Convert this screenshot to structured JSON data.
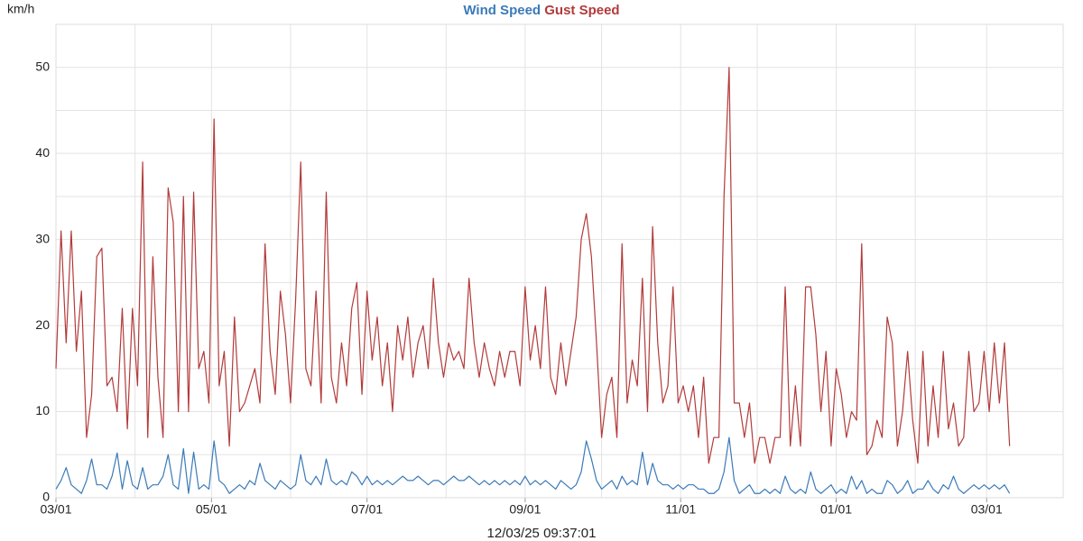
{
  "chart_data": {
    "type": "line",
    "y_label": "km/h",
    "x_label": "12/03/25 09:37:01",
    "x": [
      0,
      2,
      4,
      6,
      8,
      10,
      12,
      14,
      16,
      18,
      20,
      22,
      24,
      26,
      28,
      30,
      32,
      34,
      36,
      38,
      40,
      42,
      44,
      46,
      48,
      50,
      52,
      54,
      56,
      58,
      60,
      62,
      64,
      66,
      68,
      70,
      72,
      74,
      76,
      78,
      80,
      82,
      84,
      86,
      88,
      90,
      92,
      94,
      96,
      98,
      100,
      102,
      104,
      106,
      108,
      110,
      112,
      114,
      116,
      118,
      120,
      122,
      124,
      126,
      128,
      130,
      132,
      134,
      136,
      138,
      140,
      142,
      144,
      146,
      148,
      150,
      152,
      154,
      156,
      158,
      160,
      162,
      164,
      166,
      168,
      170,
      172,
      174,
      176,
      178,
      180,
      182,
      184,
      186,
      188,
      190,
      192,
      194,
      196,
      198,
      200,
      202,
      204,
      206,
      208,
      210,
      212,
      214,
      216,
      218,
      220,
      222,
      224,
      226,
      228,
      230,
      232,
      234,
      236,
      238,
      240,
      242,
      244,
      246,
      248,
      250,
      252,
      254,
      256,
      258,
      260,
      262,
      264,
      266,
      268,
      270,
      272,
      274,
      276,
      278,
      280,
      282,
      284,
      286,
      288,
      290,
      292,
      294,
      296,
      298,
      300,
      302,
      304,
      306,
      308,
      310,
      312,
      314,
      316,
      318,
      320,
      322,
      324,
      326,
      328,
      330,
      332,
      334,
      336,
      338,
      340,
      342,
      344,
      346,
      348,
      350,
      352,
      354,
      356,
      358,
      360,
      362,
      364,
      366,
      368,
      370,
      372,
      374
    ],
    "series": [
      {
        "name": "Wind Speed",
        "color": "#3a7ab8",
        "values": [
          1,
          2,
          3.5,
          1.5,
          1,
          0.5,
          2,
          4.5,
          1.5,
          1.5,
          1,
          2.5,
          5.2,
          1,
          4.3,
          1.5,
          1,
          3.5,
          1,
          1.5,
          1.5,
          2.5,
          5,
          1.5,
          1,
          5.7,
          0.5,
          5.3,
          1,
          1.5,
          1,
          6.6,
          2,
          1.5,
          0.5,
          1,
          1.5,
          1,
          2,
          1.5,
          4,
          2,
          1.5,
          1,
          2,
          1.5,
          1,
          1.5,
          5,
          2,
          1.5,
          2.5,
          1.5,
          4.5,
          2,
          1.5,
          2,
          1.5,
          3,
          2.5,
          1.5,
          2.5,
          1.5,
          2,
          1.5,
          2,
          1.5,
          2,
          2.5,
          2,
          2,
          2.5,
          2,
          1.5,
          2,
          2,
          1.5,
          2,
          2.5,
          2,
          2,
          2.5,
          2,
          1.5,
          2,
          1.5,
          2,
          1.5,
          2,
          1.5,
          2,
          1.5,
          2.5,
          1.5,
          2,
          1.5,
          2,
          1.5,
          1,
          2,
          1.5,
          1,
          1.5,
          3,
          6.6,
          4.5,
          2,
          1,
          1.5,
          2,
          1,
          2.5,
          1.5,
          2,
          1.5,
          5.3,
          1.5,
          4,
          2,
          1.5,
          1.5,
          1,
          1.5,
          1,
          1.5,
          1.5,
          1,
          1,
          0.5,
          0.5,
          1,
          3,
          7,
          2,
          0.5,
          1,
          1.5,
          0.5,
          0.5,
          1,
          0.5,
          1,
          0.5,
          2.5,
          1,
          0.5,
          1,
          0.5,
          3,
          1,
          0.5,
          1,
          1.5,
          0.5,
          1,
          0.5,
          2.5,
          1,
          2,
          0.5,
          1,
          0.5,
          0.5,
          2,
          1.5,
          0.5,
          1,
          2,
          0.5,
          1,
          1,
          2,
          1,
          0.5,
          1.5,
          1,
          2.5,
          1,
          0.5,
          1,
          1.5,
          1,
          1.5,
          1,
          1.5,
          1,
          1.5,
          0.5
        ]
      },
      {
        "name": "Gust Speed",
        "color": "#b33a3a",
        "values": [
          15,
          31,
          18,
          31,
          17,
          24,
          7,
          12,
          28,
          29,
          13,
          14,
          10,
          22,
          8,
          22,
          13,
          39,
          7,
          28,
          14,
          7,
          36,
          32,
          10,
          35,
          10,
          35.5,
          15,
          17,
          11,
          44,
          13,
          17,
          6,
          21,
          10,
          11,
          13,
          15,
          11,
          29.5,
          17,
          12,
          24,
          19,
          11,
          23,
          39,
          15,
          13,
          24,
          11,
          35.5,
          14,
          11,
          18,
          13,
          22,
          25,
          12,
          24,
          16,
          21,
          13,
          18,
          10,
          20,
          16,
          21,
          14,
          18,
          20,
          15,
          25.5,
          18,
          14,
          18,
          16,
          17,
          15,
          25.5,
          18,
          14,
          18,
          15,
          13,
          17,
          14,
          17,
          17,
          13,
          24.5,
          16,
          20,
          15,
          24.5,
          14,
          12,
          18,
          13,
          17,
          21,
          30,
          33,
          28,
          18,
          7,
          12,
          14,
          7,
          29.5,
          11,
          16,
          13,
          25.5,
          10,
          31.5,
          18,
          11,
          13,
          24.5,
          11,
          13,
          10,
          13,
          7,
          14,
          4,
          7,
          7,
          35,
          50,
          11,
          11,
          7,
          11,
          4,
          7,
          7,
          4,
          7,
          7,
          24.5,
          6,
          13,
          6,
          24.5,
          24.5,
          19,
          10,
          17,
          6,
          15,
          12,
          7,
          10,
          9,
          29.5,
          5,
          6,
          9,
          7,
          21,
          18,
          6,
          10,
          17,
          9,
          4,
          17,
          6,
          13,
          7,
          17,
          8,
          11,
          6,
          7,
          17,
          10,
          11,
          17,
          10,
          18,
          11,
          18,
          6
        ]
      }
    ],
    "xlim": [
      0,
      395
    ],
    "xticks": [
      {
        "value": 0,
        "label": "03/01"
      },
      {
        "value": 61,
        "label": "05/01"
      },
      {
        "value": 122,
        "label": "07/01"
      },
      {
        "value": 184,
        "label": "09/01"
      },
      {
        "value": 245,
        "label": "11/01"
      },
      {
        "value": 306,
        "label": "01/01"
      },
      {
        "value": 365,
        "label": "03/01"
      }
    ],
    "x_minor_ticks": [
      31,
      92,
      153,
      214,
      275,
      337
    ],
    "ylim": [
      0,
      55
    ],
    "yticks": [
      0,
      10,
      20,
      30,
      40,
      50
    ],
    "y_minor_ticks": [
      5,
      15,
      25,
      35,
      45,
      55
    ],
    "grid": true
  }
}
